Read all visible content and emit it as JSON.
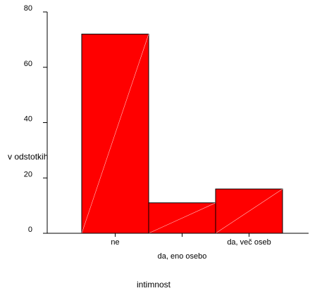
{
  "chart_data": {
    "type": "bar",
    "categories": [
      "ne",
      "da, eno osebo",
      "da, več oseb"
    ],
    "values": [
      72,
      11,
      16
    ],
    "xlabel": "intimnost",
    "ylabel": "v odstotkih",
    "ylim": [
      0,
      80
    ],
    "yticks": [
      0,
      20,
      40,
      60,
      80
    ],
    "grid": false,
    "legend": "none",
    "bar_color": "#ff0000",
    "bar_edge_color": "#000000",
    "bar_highlight_color": "#ffc0c0"
  }
}
